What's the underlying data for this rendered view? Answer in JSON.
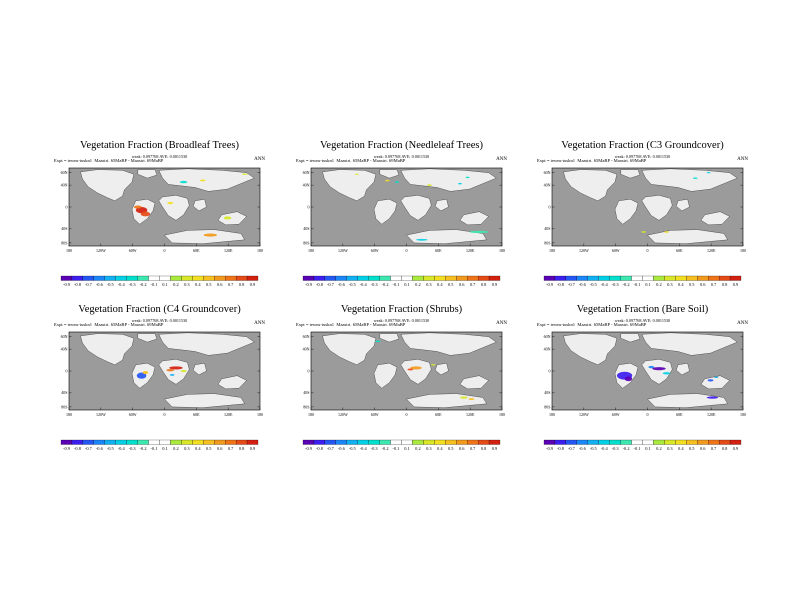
{
  "chart_data": [
    {
      "type": "heatmap",
      "title": "Vegetation Fraction (Broadleaf Trees)",
      "stats": "weak: 0.097768 AVE: 0.0011530",
      "expt": "Expt = tewns-tuskn1",
      "subtitle": "Maastri. 65MaBP - Maastri. 69MaBP",
      "period": "ANN",
      "lat_ticks": [
        "60N",
        "40N",
        "0",
        "40S",
        "80S"
      ],
      "lon_ticks": [
        "180",
        "120W",
        "60W",
        "0",
        "60E",
        "120E",
        "180"
      ],
      "colorbar": [
        "-0.9",
        "-0.8",
        "-0.7",
        "-0.6",
        "-0.5",
        "-0.4",
        "-0.3",
        "-0.2",
        "-0.1",
        "0.1",
        "0.2",
        "0.3",
        "0.4",
        "0.5",
        "0.6",
        "0.7",
        "0.8",
        "0.9"
      ],
      "notable_anomalies": [
        {
          "region": "South America interior",
          "sign": "positive",
          "magnitude": "up to 0.9"
        },
        {
          "region": "Antarctic margin",
          "sign": "positive",
          "magnitude": "0.3-0.6"
        }
      ]
    },
    {
      "type": "heatmap",
      "title": "Vegetation Fraction (Needleleaf Trees)",
      "stats": "weak: 0.097768 AVE: 0.0011530",
      "expt": "Expt = tewns-tuskn1",
      "subtitle": "Maastri. 65MaBP - Maastri. 69MaBP",
      "period": "ANN",
      "lat_ticks": [
        "60N",
        "40N",
        "0",
        "40S",
        "80S"
      ],
      "lon_ticks": [
        "180",
        "120W",
        "60W",
        "0",
        "60E",
        "120E",
        "180"
      ],
      "colorbar": [
        "-0.9",
        "-0.8",
        "-0.7",
        "-0.6",
        "-0.5",
        "-0.4",
        "-0.3",
        "-0.2",
        "-0.1",
        "0.1",
        "0.2",
        "0.3",
        "0.4",
        "0.5",
        "0.6",
        "0.7",
        "0.8",
        "0.9"
      ],
      "notable_anomalies": [
        {
          "region": "Northern high latitudes",
          "sign": "mixed",
          "magnitude": "0.1-0.3"
        },
        {
          "region": "Antarctic margin",
          "sign": "negative",
          "magnitude": "-0.1 to -0.3"
        }
      ]
    },
    {
      "type": "heatmap",
      "title": "Vegetation Fraction (C3 Groundcover)",
      "stats": "weak: 0.097768 AVE: 0.0011530",
      "expt": "Expt = tewns-tuskn1",
      "subtitle": "Maastri. 65MaBP - Maastri. 69MaBP",
      "period": "ANN",
      "lat_ticks": [
        "60N",
        "40N",
        "0",
        "40S",
        "80S"
      ],
      "lon_ticks": [
        "180",
        "120W",
        "60W",
        "0",
        "60E",
        "120E",
        "180"
      ],
      "colorbar": [
        "-0.9",
        "-0.8",
        "-0.7",
        "-0.6",
        "-0.5",
        "-0.4",
        "-0.3",
        "-0.2",
        "-0.1",
        "0.1",
        "0.2",
        "0.3",
        "0.4",
        "0.5",
        "0.6",
        "0.7",
        "0.8",
        "0.9"
      ],
      "notable_anomalies": [
        {
          "region": "Scattered",
          "sign": "mixed",
          "magnitude": "small"
        }
      ]
    },
    {
      "type": "heatmap",
      "title": "Vegetation Fraction (C4 Groundcover)",
      "stats": "weak: 0.097768 AVE: 0.0011530",
      "expt": "Expt = tewns-tuskn1",
      "subtitle": "Maastri. 65MaBP - Maastri. 69MaBP",
      "period": "ANN",
      "lat_ticks": [
        "60N",
        "40N",
        "0",
        "40S",
        "80S"
      ],
      "lon_ticks": [
        "180",
        "120W",
        "60W",
        "0",
        "60E",
        "120E",
        "180"
      ],
      "colorbar": [
        "-0.9",
        "-0.8",
        "-0.7",
        "-0.6",
        "-0.5",
        "-0.4",
        "-0.3",
        "-0.2",
        "-0.1",
        "0.1",
        "0.2",
        "0.3",
        "0.4",
        "0.5",
        "0.6",
        "0.7",
        "0.8",
        "0.9"
      ],
      "notable_anomalies": [
        {
          "region": "South America",
          "sign": "negative",
          "magnitude": "-0.5 to -0.9"
        },
        {
          "region": "Africa",
          "sign": "positive",
          "magnitude": "up to 0.9"
        }
      ]
    },
    {
      "type": "heatmap",
      "title": "Vegetation Fraction (Shrubs)",
      "stats": "weak: 0.097768 AVE: 0.0011530",
      "expt": "Expt = tewns-tuskn1",
      "subtitle": "Maastri. 65MaBP - Maastri. 69MaBP",
      "period": "ANN",
      "lat_ticks": [
        "60N",
        "40N",
        "0",
        "40S",
        "80S"
      ],
      "lon_ticks": [
        "180",
        "120W",
        "60W",
        "0",
        "60E",
        "120E",
        "180"
      ],
      "colorbar": [
        "-0.9",
        "-0.8",
        "-0.7",
        "-0.6",
        "-0.5",
        "-0.4",
        "-0.3",
        "-0.2",
        "-0.1",
        "0.1",
        "0.2",
        "0.3",
        "0.4",
        "0.5",
        "0.6",
        "0.7",
        "0.8",
        "0.9"
      ],
      "notable_anomalies": [
        {
          "region": "Africa",
          "sign": "positive",
          "magnitude": "0.5-0.8"
        },
        {
          "region": "Antarctic margin",
          "sign": "positive",
          "magnitude": "0.2-0.5"
        }
      ]
    },
    {
      "type": "heatmap",
      "title": "Vegetation Fraction (Bare Soil)",
      "stats": "weak: 0.097768 AVE: 0.0011530",
      "expt": "Expt = tewns-tuskn1",
      "subtitle": "Maastri. 65MaBP - Maastri. 69MaBP",
      "period": "ANN",
      "lat_ticks": [
        "60N",
        "40N",
        "0",
        "40S",
        "80S"
      ],
      "lon_ticks": [
        "180",
        "120W",
        "60W",
        "0",
        "60E",
        "120E",
        "180"
      ],
      "colorbar": [
        "-0.9",
        "-0.8",
        "-0.7",
        "-0.6",
        "-0.5",
        "-0.4",
        "-0.3",
        "-0.2",
        "-0.1",
        "0.1",
        "0.2",
        "0.3",
        "0.4",
        "0.5",
        "0.6",
        "0.7",
        "0.8",
        "0.9"
      ],
      "notable_anomalies": [
        {
          "region": "South America",
          "sign": "negative",
          "magnitude": "-0.6 to -0.9"
        },
        {
          "region": "Africa",
          "sign": "negative",
          "magnitude": "-0.4 to -0.9"
        },
        {
          "region": "Australia/Antarctica",
          "sign": "negative",
          "magnitude": "-0.3 to -0.6"
        }
      ]
    }
  ],
  "colors": {
    "ocean": "#9b9b9b",
    "land": "#eeeeee",
    "scale": [
      "#5a00b5",
      "#3c1ef0",
      "#2456f5",
      "#1a86f7",
      "#10b0f2",
      "#00d0e6",
      "#00e0cc",
      "#3ce8b0",
      "#ffffff",
      "#ffffff",
      "#aaea3c",
      "#d8e828",
      "#f2e020",
      "#f6c020",
      "#f29a1c",
      "#ef7418",
      "#e64a16",
      "#d42010"
    ]
  }
}
